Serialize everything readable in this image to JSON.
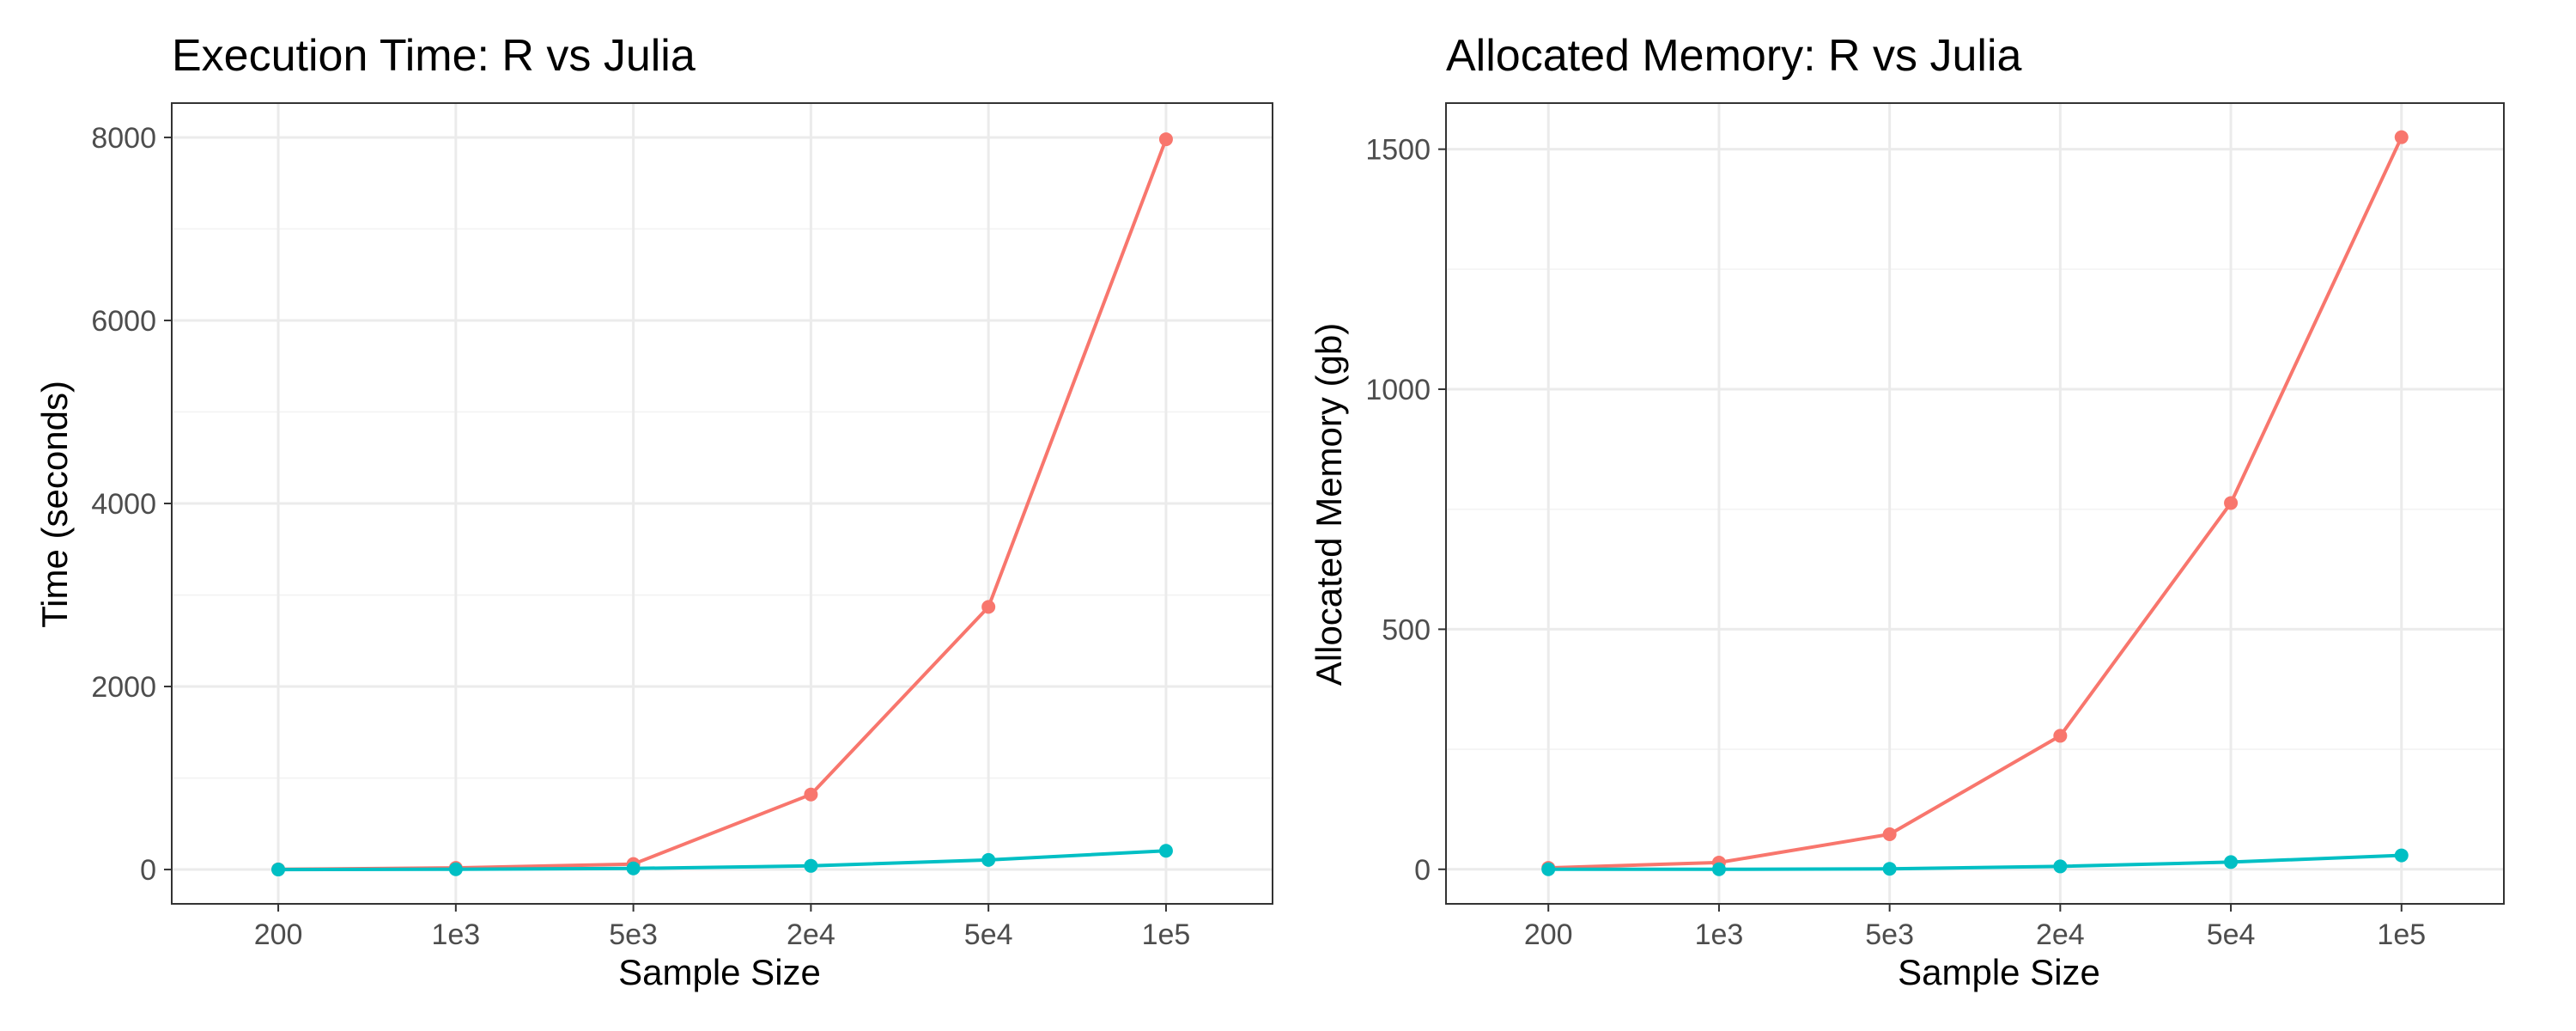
{
  "chart_data": [
    {
      "type": "line",
      "title": "Execution Time: R vs Julia",
      "xlabel": "Sample Size",
      "ylabel": "Time (seconds)",
      "categories": [
        "200",
        "1e3",
        "5e3",
        "2e4",
        "5e4",
        "1e5"
      ],
      "ylim": [
        -375,
        8375
      ],
      "yticks": [
        0,
        2000,
        4000,
        6000,
        8000
      ],
      "grid": true,
      "series": [
        {
          "color": "#F8766D",
          "values": [
            2,
            18,
            60,
            820,
            2870,
            7980
          ]
        },
        {
          "color": "#00BFC4",
          "values": [
            0,
            3,
            12,
            40,
            105,
            205
          ]
        }
      ]
    },
    {
      "type": "line",
      "title": "Allocated Memory: R vs Julia",
      "xlabel": "Sample Size",
      "ylabel": "Allocated Memory (gb)",
      "categories": [
        "200",
        "1e3",
        "5e3",
        "2e4",
        "5e4",
        "1e5"
      ],
      "ylim": [
        -72,
        1596
      ],
      "yticks": [
        0,
        500,
        1000,
        1500
      ],
      "grid": true,
      "series": [
        {
          "color": "#F8766D",
          "values": [
            3,
            14,
            73,
            278,
            763,
            1525
          ]
        },
        {
          "color": "#00BFC4",
          "values": [
            0,
            0,
            1,
            6,
            15,
            29
          ]
        }
      ]
    }
  ]
}
